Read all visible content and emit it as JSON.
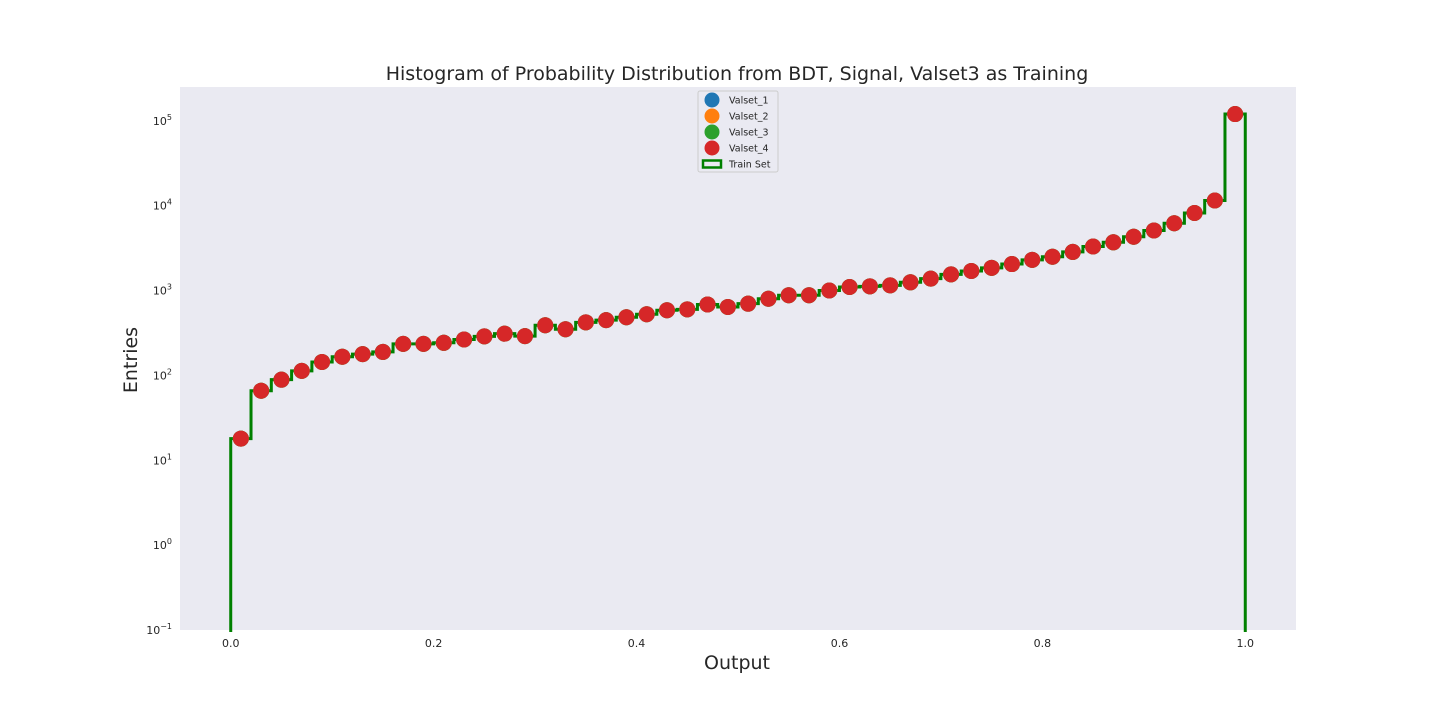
{
  "chart_data": {
    "type": "scatter",
    "title": "Histogram of Probability Distribution from BDT, Signal, Valset3 as Training",
    "xlabel": "Output",
    "ylabel": "Entries",
    "xlim": [
      -0.05,
      1.05
    ],
    "ylim": [
      0.1,
      250000
    ],
    "yscale": "log",
    "grid": false,
    "legend_position": "top-center",
    "background_color": "#eaeaf2",
    "x_ticks": [
      {
        "value": 0.0,
        "label": "0.0"
      },
      {
        "value": 0.2,
        "label": "0.2"
      },
      {
        "value": 0.4,
        "label": "0.4"
      },
      {
        "value": 0.6,
        "label": "0.6"
      },
      {
        "value": 0.8,
        "label": "0.8"
      },
      {
        "value": 1.0,
        "label": "1.0"
      }
    ],
    "y_ticks": [
      {
        "value": 0.1,
        "base": "10",
        "exp": "−1"
      },
      {
        "value": 1,
        "base": "10",
        "exp": "0"
      },
      {
        "value": 10,
        "base": "10",
        "exp": "1"
      },
      {
        "value": 100,
        "base": "10",
        "exp": "2"
      },
      {
        "value": 1000,
        "base": "10",
        "exp": "3"
      },
      {
        "value": 10000,
        "base": "10",
        "exp": "4"
      },
      {
        "value": 100000,
        "base": "10",
        "exp": "5"
      }
    ],
    "x": [
      0.01,
      0.03,
      0.05,
      0.07,
      0.09,
      0.11,
      0.13,
      0.15,
      0.17,
      0.19,
      0.21,
      0.23,
      0.25,
      0.27,
      0.29,
      0.31,
      0.33,
      0.35,
      0.37,
      0.39,
      0.41,
      0.43,
      0.45,
      0.47,
      0.49,
      0.51,
      0.53,
      0.55,
      0.57,
      0.59,
      0.61,
      0.63,
      0.65,
      0.67,
      0.69,
      0.71,
      0.73,
      0.75,
      0.77,
      0.79,
      0.81,
      0.83,
      0.85,
      0.87,
      0.89,
      0.91,
      0.93,
      0.95,
      0.97,
      0.99
    ],
    "series": [
      {
        "name": "Valset_1",
        "kind": "points",
        "color": "#1f77b4",
        "values": [
          18,
          66,
          89,
          113,
          144,
          166,
          178,
          189,
          235,
          235,
          242,
          265,
          288,
          310,
          290,
          390,
          350,
          422,
          448,
          484,
          525,
          585,
          600,
          685,
          640,
          700,
          800,
          880,
          880,
          1000,
          1100,
          1120,
          1150,
          1250,
          1380,
          1550,
          1700,
          1850,
          2050,
          2300,
          2500,
          2850,
          3300,
          3700,
          4300,
          5100,
          6200,
          8200,
          11500,
          120000
        ]
      },
      {
        "name": "Valset_2",
        "kind": "points",
        "color": "#ff7f0e",
        "values": [
          18,
          66,
          89,
          113,
          144,
          166,
          178,
          189,
          235,
          235,
          242,
          265,
          288,
          310,
          290,
          390,
          350,
          422,
          448,
          484,
          525,
          585,
          600,
          685,
          640,
          700,
          800,
          880,
          880,
          1000,
          1100,
          1120,
          1150,
          1250,
          1380,
          1550,
          1700,
          1850,
          2050,
          2300,
          2500,
          2850,
          3300,
          3700,
          4300,
          5100,
          6200,
          8200,
          11500,
          120000
        ]
      },
      {
        "name": "Valset_3",
        "kind": "points",
        "color": "#2ca02c",
        "values": [
          18,
          66,
          89,
          113,
          144,
          166,
          178,
          189,
          235,
          235,
          242,
          265,
          288,
          310,
          290,
          390,
          350,
          422,
          448,
          484,
          525,
          585,
          600,
          685,
          640,
          700,
          800,
          880,
          880,
          1000,
          1100,
          1120,
          1150,
          1250,
          1380,
          1550,
          1700,
          1850,
          2050,
          2300,
          2500,
          2850,
          3300,
          3700,
          4300,
          5100,
          6200,
          8200,
          11500,
          120000
        ]
      },
      {
        "name": "Valset_4",
        "kind": "points",
        "color": "#d62728",
        "values": [
          18,
          66,
          89,
          113,
          144,
          166,
          178,
          189,
          235,
          235,
          242,
          265,
          288,
          310,
          290,
          390,
          350,
          422,
          448,
          484,
          525,
          585,
          600,
          685,
          640,
          700,
          800,
          880,
          880,
          1000,
          1100,
          1120,
          1150,
          1250,
          1380,
          1550,
          1700,
          1850,
          2050,
          2300,
          2500,
          2850,
          3300,
          3700,
          4300,
          5100,
          6200,
          8200,
          11500,
          120000
        ]
      },
      {
        "name": "Train Set",
        "kind": "step-histogram",
        "color": "#008000",
        "values": [
          18,
          66,
          89,
          113,
          144,
          166,
          178,
          189,
          235,
          235,
          242,
          265,
          288,
          310,
          290,
          390,
          350,
          422,
          448,
          484,
          525,
          585,
          600,
          685,
          640,
          700,
          800,
          880,
          880,
          1000,
          1100,
          1120,
          1150,
          1250,
          1380,
          1550,
          1700,
          1850,
          2050,
          2300,
          2500,
          2850,
          3300,
          3700,
          4300,
          5100,
          6200,
          8200,
          11500,
          120000
        ]
      }
    ]
  }
}
